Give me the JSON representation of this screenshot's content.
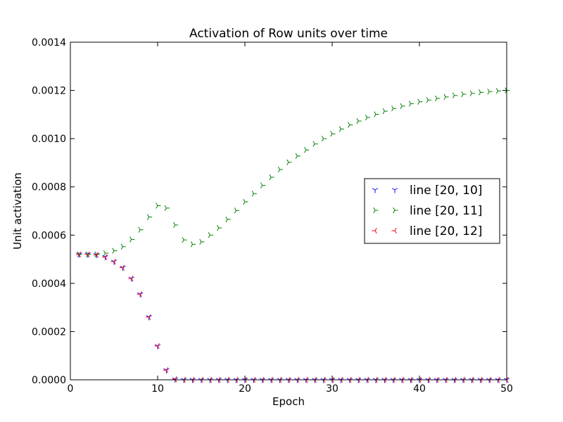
{
  "chart_data": {
    "type": "scatter",
    "title": "Activation of Row units over time",
    "xlabel": "Epoch",
    "ylabel": "Unit activation",
    "xlim": [
      0,
      50
    ],
    "ylim": [
      0,
      0.0014
    ],
    "xticks": [
      0,
      10,
      20,
      30,
      40,
      50
    ],
    "xtick_labels": [
      "0",
      "10",
      "20",
      "30",
      "40",
      "50"
    ],
    "yticks": [
      0,
      0.0002,
      0.0004,
      0.0006,
      0.0008,
      0.001,
      0.0012,
      0.0014
    ],
    "ytick_labels": [
      "0.0000",
      "0.0002",
      "0.0004",
      "0.0006",
      "0.0008",
      "0.0010",
      "0.0012",
      "0.0014"
    ],
    "grid": false,
    "legend_position": "right",
    "series": [
      {
        "name": "line [20, 10]",
        "color": "#0000ff",
        "marker": "tri-down",
        "x": [
          1,
          2,
          3,
          4,
          5,
          6,
          7,
          8,
          9,
          10,
          11,
          12,
          13,
          14,
          15,
          16,
          17,
          18,
          19,
          20,
          21,
          22,
          23,
          24,
          25,
          26,
          27,
          28,
          29,
          30,
          31,
          32,
          33,
          34,
          35,
          36,
          37,
          38,
          39,
          40,
          41,
          42,
          43,
          44,
          45,
          46,
          47,
          48,
          49,
          50
        ],
        "y": [
          0.00052,
          0.00052,
          0.000518,
          0.000509,
          0.00049,
          0.000465,
          0.00042,
          0.000355,
          0.00026,
          0.00014,
          4e-05,
          2e-06,
          0,
          0,
          0,
          0,
          0,
          0,
          0,
          0,
          0,
          0,
          0,
          0,
          0,
          0,
          0,
          0,
          0,
          0,
          0,
          0,
          0,
          0,
          0,
          0,
          0,
          0,
          0,
          0,
          0,
          0,
          0,
          0,
          0,
          0,
          0,
          0,
          0,
          0
        ]
      },
      {
        "name": "line [20, 11]",
        "color": "#008000",
        "marker": "tri-right",
        "x": [
          1,
          2,
          3,
          4,
          5,
          6,
          7,
          8,
          9,
          10,
          11,
          12,
          13,
          14,
          15,
          16,
          17,
          18,
          19,
          20,
          21,
          22,
          23,
          24,
          25,
          26,
          27,
          28,
          29,
          30,
          31,
          32,
          33,
          34,
          35,
          36,
          37,
          38,
          39,
          40,
          41,
          42,
          43,
          44,
          45,
          46,
          47,
          48,
          49,
          50
        ],
        "y": [
          0.00052,
          0.00052,
          0.00052,
          0.000525,
          0.000535,
          0.000552,
          0.000582,
          0.000622,
          0.000675,
          0.000722,
          0.000712,
          0.000642,
          0.00058,
          0.000562,
          0.000572,
          0.0006,
          0.00063,
          0.000665,
          0.000702,
          0.000738,
          0.000772,
          0.000806,
          0.00084,
          0.000872,
          0.000902,
          0.000928,
          0.000953,
          0.000978,
          0.001,
          0.00102,
          0.00104,
          0.001057,
          0.001073,
          0.001088,
          0.001101,
          0.001114,
          0.001125,
          0.001135,
          0.001145,
          0.001153,
          0.00116,
          0.001167,
          0.001173,
          0.001179,
          0.001184,
          0.001188,
          0.001192,
          0.001195,
          0.001198,
          0.0012
        ]
      },
      {
        "name": "line [20, 12]",
        "color": "#ff0000",
        "marker": "tri-left",
        "x": [
          1,
          2,
          3,
          4,
          5,
          6,
          7,
          8,
          9,
          10,
          11,
          12,
          13,
          14,
          15,
          16,
          17,
          18,
          19,
          20,
          21,
          22,
          23,
          24,
          25,
          26,
          27,
          28,
          29,
          30,
          31,
          32,
          33,
          34,
          35,
          36,
          37,
          38,
          39,
          40,
          41,
          42,
          43,
          44,
          45,
          46,
          47,
          48,
          49,
          50
        ],
        "y": [
          0.00052,
          0.00052,
          0.000518,
          0.000509,
          0.00049,
          0.000465,
          0.00042,
          0.000355,
          0.00026,
          0.00014,
          4e-05,
          2e-06,
          0,
          0,
          0,
          0,
          0,
          0,
          0,
          0,
          0,
          0,
          0,
          0,
          0,
          0,
          0,
          0,
          0,
          0,
          0,
          0,
          0,
          0,
          0,
          0,
          0,
          0,
          0,
          0,
          0,
          0,
          0,
          0,
          0,
          0,
          0,
          0,
          0,
          0
        ]
      }
    ]
  }
}
